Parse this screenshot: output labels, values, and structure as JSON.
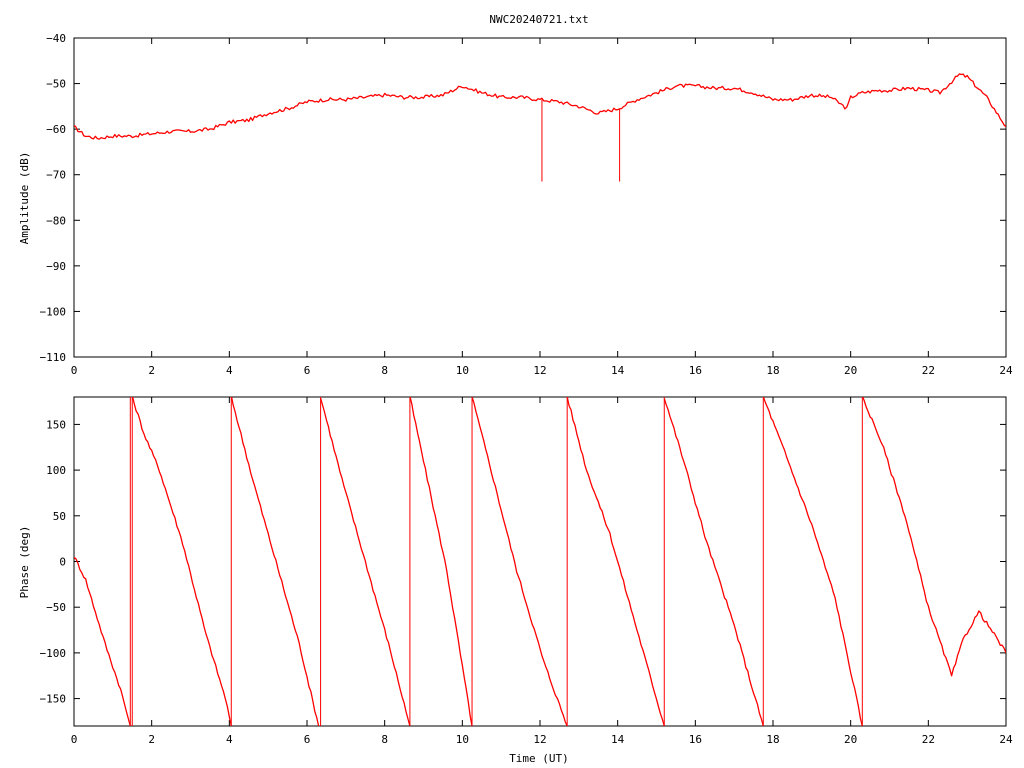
{
  "title": "NWC20240721.txt",
  "chart_data": [
    {
      "name": "amplitude-panel",
      "type": "line",
      "title": "NWC20240721.txt",
      "xlabel": "",
      "ylabel": "Amplitude (dB)",
      "xlim": [
        0,
        24
      ],
      "ylim": [
        -110,
        -40
      ],
      "xticks": [
        0,
        2,
        4,
        6,
        8,
        10,
        12,
        14,
        16,
        18,
        20,
        22,
        24
      ],
      "yticks": [
        -110,
        -100,
        -90,
        -80,
        -70,
        -60,
        -50,
        -40
      ],
      "series_color": "#ff0000",
      "series": [
        {
          "x": [
            0,
            0.3,
            0.6,
            1,
            1.5,
            2,
            2.5,
            3,
            3.5,
            4,
            4.5,
            5,
            5.5,
            6,
            6.5,
            7,
            7.5,
            8,
            8.5,
            9,
            9.5,
            10,
            10.5,
            11,
            11.5,
            12,
            12.5,
            13,
            13.5,
            14,
            14.5,
            15,
            15.5,
            16,
            16.5,
            17,
            17.5,
            18,
            18.5,
            19,
            19.5,
            19.9,
            20,
            20.3,
            20.7,
            21,
            21.5,
            22,
            22.3,
            22.8,
            23,
            23.5,
            24
          ],
          "y": [
            -59.5,
            -61.5,
            -62,
            -61.5,
            -61.5,
            -61,
            -60.5,
            -60.5,
            -60,
            -58.5,
            -58,
            -56.5,
            -55.5,
            -54,
            -53.5,
            -53.5,
            -53,
            -52.5,
            -53,
            -53,
            -52.5,
            -50.5,
            -52,
            -53,
            -53,
            -53.5,
            -54,
            -55,
            -56.5,
            -55.5,
            -53.5,
            -52,
            -50.5,
            -50.5,
            -51,
            -51,
            -52,
            -53.5,
            -53.5,
            -52.5,
            -53,
            -55.5,
            -53,
            -52,
            -51.5,
            -51.5,
            -51,
            -51.5,
            -52,
            -48,
            -48.5,
            -53,
            -59.5
          ]
        }
      ],
      "spikes": [
        {
          "x": 12.05,
          "from": -53.5,
          "to": -71.5
        },
        {
          "x": 14.05,
          "from": -55.5,
          "to": -71.5
        }
      ]
    },
    {
      "name": "phase-panel",
      "type": "line",
      "title": "",
      "xlabel": "Time (UT)",
      "ylabel": "Phase (deg)",
      "xlim": [
        0,
        24
      ],
      "ylim": [
        -180,
        180
      ],
      "xticks": [
        0,
        2,
        4,
        6,
        8,
        10,
        12,
        14,
        16,
        18,
        20,
        22,
        24
      ],
      "yticks": [
        -150,
        -100,
        -50,
        0,
        50,
        100,
        150
      ],
      "series_color": "#ff0000",
      "segments": [
        {
          "x": [
            0,
            0.3,
            0.8,
            1.2,
            1.45
          ],
          "y": [
            6,
            -20,
            -90,
            -140,
            -180
          ]
        },
        {
          "x": [
            1.5,
            1.8,
            2.2,
            2.8,
            3.4,
            3.9,
            4.05
          ],
          "y": [
            180,
            140,
            100,
            20,
            -80,
            -150,
            -180
          ]
        },
        {
          "x": [
            4.05,
            4.6,
            5.2,
            5.8,
            6.3
          ],
          "y": [
            180,
            90,
            0,
            -90,
            -180
          ]
        },
        {
          "x": [
            6.35,
            6.9,
            7.5,
            8.1,
            8.65
          ],
          "y": [
            180,
            90,
            0,
            -90,
            -180
          ]
        },
        {
          "x": [
            8.65,
            9.1,
            9.6,
            10.25
          ],
          "y": [
            180,
            90,
            -10,
            -180
          ]
        },
        {
          "x": [
            10.25,
            10.8,
            11.4,
            12.1,
            12.7
          ],
          "y": [
            180,
            90,
            -10,
            -110,
            -180
          ]
        },
        {
          "x": [
            12.7,
            13.2,
            13.8,
            14.4,
            15.2
          ],
          "y": [
            180,
            100,
            30,
            -60,
            -180
          ]
        },
        {
          "x": [
            15.2,
            15.7,
            16.3,
            17.0,
            17.75
          ],
          "y": [
            180,
            110,
            20,
            -70,
            -180
          ]
        },
        {
          "x": [
            17.75,
            18.3,
            19.0,
            19.6,
            20.3
          ],
          "y": [
            180,
            120,
            40,
            -40,
            -180
          ]
        },
        {
          "x": [
            20.3,
            20.8,
            21.4,
            22.0,
            22.6,
            22.9,
            23.3,
            23.7,
            24
          ],
          "y": [
            180,
            130,
            50,
            -50,
            -125,
            -85,
            -55,
            -80,
            -100
          ]
        }
      ],
      "wraps": [
        1.45,
        1.5,
        4.05,
        6.35,
        8.65,
        10.25,
        12.7,
        15.2,
        17.75,
        20.3
      ]
    }
  ]
}
